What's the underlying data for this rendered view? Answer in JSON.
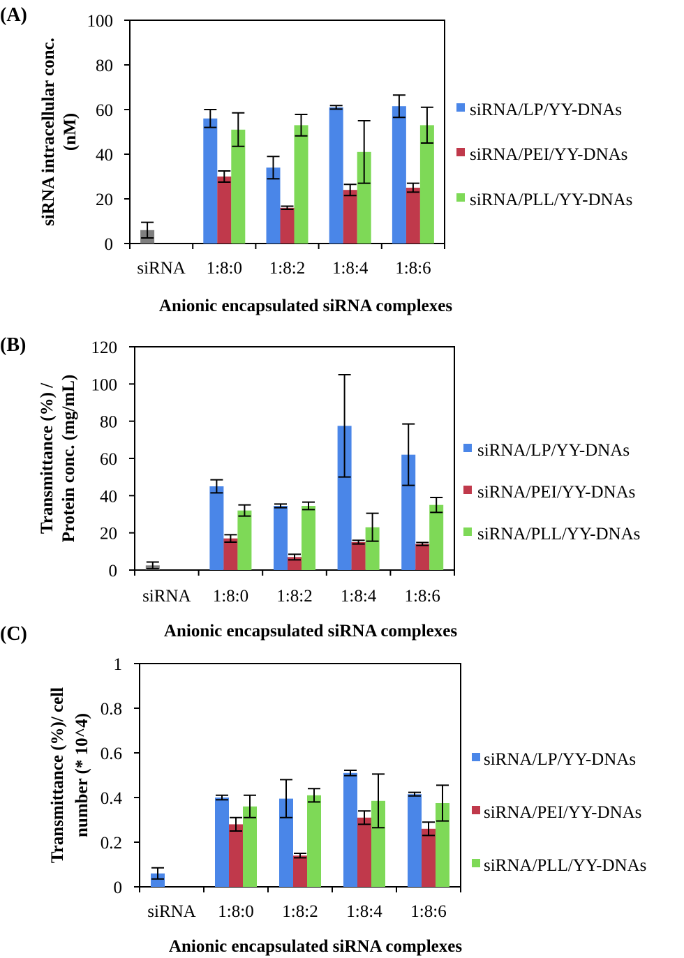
{
  "chart_data": [
    {
      "type": "bar",
      "panel_label": "(A)",
      "title": "",
      "xlabel": "Anionic encapsulated siRNA complexes",
      "ylabel_lines": [
        "siRNA intracellular conc.",
        "(nM)"
      ],
      "ylim": [
        0,
        100
      ],
      "yticks": [
        0,
        20,
        40,
        60,
        80,
        100
      ],
      "ytick_labels": [
        "0",
        "20",
        "40",
        "60",
        "80",
        "100"
      ],
      "categories": [
        "siRNA",
        "1:8:0",
        "1:8:2",
        "1:8:4",
        "1:8:6"
      ],
      "control": {
        "name": "siRNA",
        "value": 6,
        "error": 3.5,
        "color": "#7f7f7f"
      },
      "series": [
        {
          "name": "siRNA/LP/YY-DNAs",
          "color": "#4a86e8",
          "values": [
            null,
            56,
            34,
            61,
            61.5
          ],
          "errors": [
            null,
            4,
            5,
            0.8,
            5
          ]
        },
        {
          "name": "siRNA/PEI/YY-DNAs",
          "color": "#c0394b",
          "values": [
            null,
            30,
            16,
            24,
            25
          ],
          "errors": [
            null,
            2.5,
            0.7,
            2.5,
            2
          ]
        },
        {
          "name": "siRNA/PLL/YY-DNAs",
          "color": "#7ed957",
          "values": [
            null,
            51,
            53,
            41,
            53
          ],
          "errors": [
            null,
            7.5,
            4.8,
            14,
            8
          ]
        }
      ],
      "legend": "right",
      "grid": false
    },
    {
      "type": "bar",
      "panel_label": "(B)",
      "title": "",
      "xlabel": "Anionic encapsulated siRNA complexes",
      "ylabel_lines": [
        "Transmittance (%) /",
        "Protein conc. (mg/mL)"
      ],
      "ylim": [
        0,
        120
      ],
      "yticks": [
        0,
        20,
        40,
        60,
        80,
        100,
        120
      ],
      "ytick_labels": [
        "0",
        "20",
        "40",
        "60",
        "80",
        "100",
        "120"
      ],
      "categories": [
        "siRNA",
        "1:8:0",
        "1:8:2",
        "1:8:4",
        "1:8:6"
      ],
      "control": {
        "name": "siRNA",
        "value": 2.5,
        "error": 1.8,
        "color": "#7f7f7f"
      },
      "series": [
        {
          "name": "siRNA/LP/YY-DNAs",
          "color": "#4a86e8",
          "values": [
            null,
            45,
            34.5,
            77.5,
            62
          ],
          "errors": [
            null,
            3.5,
            1,
            27.5,
            16.5
          ]
        },
        {
          "name": "siRNA/PEI/YY-DNAs",
          "color": "#c0394b",
          "values": [
            null,
            17,
            7,
            15,
            14
          ],
          "errors": [
            null,
            2,
            1.5,
            1,
            0.8
          ]
        },
        {
          "name": "siRNA/PLL/YY-DNAs",
          "color": "#7ed957",
          "values": [
            null,
            32,
            34.5,
            23,
            35
          ],
          "errors": [
            null,
            3,
            2,
            7.5,
            4
          ]
        }
      ],
      "legend": "right",
      "grid": false
    },
    {
      "type": "bar",
      "panel_label": "(C)",
      "title": "",
      "xlabel": "Anionic encapsulated siRNA complexes",
      "ylabel_lines": [
        "Transmittance (%)/ cell",
        "number (* 10^4)"
      ],
      "ylim": [
        0,
        1
      ],
      "yticks": [
        0,
        0.2,
        0.4,
        0.6,
        0.8,
        1
      ],
      "ytick_labels": [
        "0",
        "0.2",
        "0.4",
        "0.6",
        "0.8",
        "1"
      ],
      "categories": [
        "siRNA",
        "1:8:0",
        "1:8:2",
        "1:8:4",
        "1:8:6"
      ],
      "control": {
        "name": "siRNA",
        "value": 0.06,
        "error": 0.025,
        "color": "#4a86e8"
      },
      "series": [
        {
          "name": "siRNA/LP/YY-DNAs",
          "color": "#4a86e8",
          "values": [
            null,
            0.4,
            0.395,
            0.51,
            0.415
          ],
          "errors": [
            null,
            0.01,
            0.085,
            0.012,
            0.008
          ]
        },
        {
          "name": "siRNA/PEI/YY-DNAs",
          "color": "#c0394b",
          "values": [
            null,
            0.28,
            0.14,
            0.31,
            0.26
          ],
          "errors": [
            null,
            0.03,
            0.01,
            0.03,
            0.03
          ]
        },
        {
          "name": "siRNA/PLL/YY-DNAs",
          "color": "#7ed957",
          "values": [
            null,
            0.36,
            0.41,
            0.385,
            0.375
          ],
          "errors": [
            null,
            0.05,
            0.03,
            0.12,
            0.08
          ]
        }
      ],
      "legend": "right",
      "grid": false
    }
  ]
}
